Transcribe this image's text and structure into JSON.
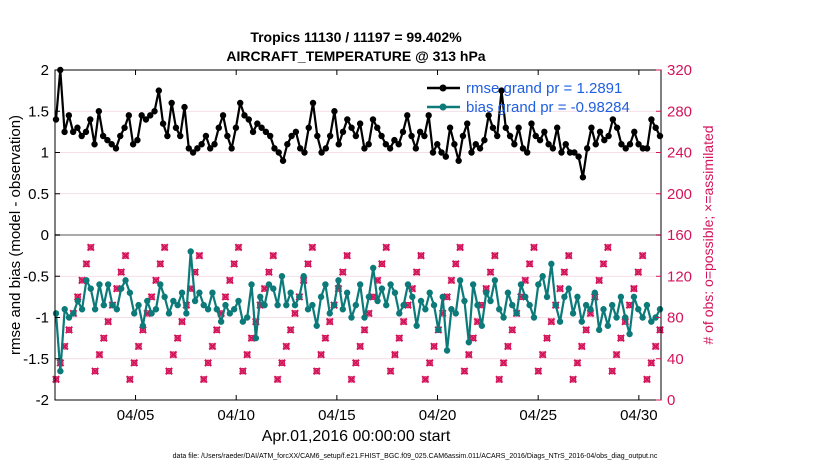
{
  "title_line1": "Tropics 11130 / 11197 = 99.402%",
  "title_line2": "AIRCRAFT_TEMPERATURE @ 313 hPa",
  "xlabel": "Apr.01,2016 00:00:00 start",
  "ylabel_left": "rmse and bias (model - observation)",
  "ylabel_right": "# of obs: o=possible; ×=assimilated",
  "footer": "data file: /Users/raeder/DAI/ATM_forcXX/CAM6_setup/f.e21.FHIST_BGC.f09_025.CAM6assim.011/ACARS_2016/Diags_NTrS_2016-04/obs_diag_output.nc",
  "legend": {
    "rmse_label": "rmse grand pr = 1.2891",
    "bias_label": "bias grand pr = -0.98284"
  },
  "colors": {
    "rmse": "#000000",
    "bias": "#0d7a7a",
    "obs": "#d4145a",
    "zero_line": "#aaaaaa",
    "legend_text": "#1f5fe0"
  },
  "chart_data": {
    "type": "line",
    "x_unit": "days since 2016-04-01 00:00",
    "x_range": [
      0,
      30.1
    ],
    "y_left_range": [
      -2,
      2
    ],
    "y_right_range": [
      0,
      320
    ],
    "x_ticks": [
      {
        "value": 4,
        "label": "04/05"
      },
      {
        "value": 9,
        "label": "04/10"
      },
      {
        "value": 14,
        "label": "04/15"
      },
      {
        "value": 19,
        "label": "04/20"
      },
      {
        "value": 24,
        "label": "04/25"
      },
      {
        "value": 29,
        "label": "04/30"
      }
    ],
    "y_left_ticks": [
      {
        "value": 2,
        "label": "2"
      },
      {
        "value": 1.5,
        "label": "1.5"
      },
      {
        "value": 1,
        "label": "1"
      },
      {
        "value": 0.5,
        "label": "0.5"
      },
      {
        "value": 0,
        "label": "0"
      },
      {
        "value": -0.5,
        "label": "-0.5"
      },
      {
        "value": -1,
        "label": "-1"
      },
      {
        "value": -1.5,
        "label": "-1.5"
      },
      {
        "value": -2,
        "label": "-2"
      }
    ],
    "y_right_ticks": [
      {
        "value": 320,
        "label": "320"
      },
      {
        "value": 280,
        "label": "280"
      },
      {
        "value": 240,
        "label": "240"
      },
      {
        "value": 200,
        "label": "200"
      },
      {
        "value": 160,
        "label": "160"
      },
      {
        "value": 120,
        "label": "120"
      },
      {
        "value": 80,
        "label": "80"
      },
      {
        "value": 40,
        "label": "40"
      },
      {
        "value": 0,
        "label": "0"
      }
    ],
    "rmse": [
      1.4,
      2.0,
      1.25,
      1.45,
      1.25,
      1.3,
      1.2,
      1.25,
      1.4,
      1.1,
      1.5,
      1.2,
      1.15,
      1.1,
      1.05,
      1.2,
      1.3,
      1.45,
      1.1,
      1.15,
      1.45,
      1.4,
      1.45,
      1.5,
      1.75,
      1.35,
      1.2,
      1.6,
      1.3,
      1.2,
      1.55,
      1.05,
      1.0,
      1.05,
      1.1,
      1.2,
      1.05,
      1.1,
      1.3,
      1.45,
      1.2,
      1.05,
      1.3,
      1.6,
      1.45,
      1.4,
      1.25,
      1.35,
      1.3,
      1.25,
      1.2,
      1.05,
      1.0,
      0.9,
      1.1,
      1.2,
      1.25,
      1.05,
      1.0,
      1.3,
      1.6,
      1.2,
      1.0,
      1.05,
      1.2,
      1.5,
      1.1,
      1.25,
      1.4,
      1.3,
      1.2,
      1.35,
      1.05,
      1.1,
      1.4,
      1.3,
      1.2,
      1.1,
      1.05,
      1.15,
      1.1,
      1.25,
      1.45,
      1.2,
      1.05,
      1.25,
      1.2,
      1.45,
      1.0,
      1.1,
      1.0,
      0.95,
      1.3,
      1.1,
      0.9,
      1.2,
      1.35,
      1.0,
      1.1,
      1.05,
      1.15,
      1.45,
      1.3,
      1.2,
      1.75,
      1.3,
      1.2,
      1.1,
      1.3,
      1.05,
      1.0,
      1.35,
      1.2,
      1.15,
      1.25,
      1.1,
      1.05,
      1.3,
      1.0,
      1.1,
      1.0,
      1.0,
      0.95,
      0.7,
      1.05,
      1.3,
      1.1,
      1.25,
      1.15,
      1.2,
      1.4,
      1.3,
      1.1,
      1.05,
      1.1,
      1.25,
      1.1,
      1.05,
      1.05,
      1.4,
      1.3,
      1.2
    ],
    "bias": [
      -0.95,
      -1.65,
      -0.9,
      -1.0,
      -0.95,
      -0.8,
      -0.9,
      -0.55,
      -0.65,
      -0.9,
      -0.6,
      -0.85,
      -0.6,
      -0.85,
      -0.9,
      -0.65,
      -0.55,
      -0.7,
      -0.95,
      -0.85,
      -1.1,
      -0.8,
      -0.95,
      -0.9,
      -0.6,
      -0.75,
      -0.95,
      -0.8,
      -0.85,
      -0.7,
      -0.95,
      -0.2,
      -0.8,
      -0.7,
      -0.85,
      -0.9,
      -0.7,
      -0.9,
      -1.05,
      -0.85,
      -0.95,
      -0.9,
      -0.8,
      -1.05,
      -1.0,
      -0.6,
      -1.25,
      -0.75,
      -0.85,
      -0.6,
      -0.65,
      -0.85,
      -0.5,
      -0.85,
      -0.7,
      -0.85,
      -0.75,
      -0.5,
      -0.9,
      -0.85,
      -1.1,
      -0.75,
      -0.6,
      -0.95,
      -0.85,
      -0.55,
      -0.9,
      -0.7,
      -1.0,
      -0.85,
      -0.6,
      -1.0,
      -0.75,
      -0.4,
      -0.8,
      -0.65,
      -0.85,
      -0.6,
      -0.7,
      -0.95,
      -0.85,
      -0.6,
      -0.75,
      -1.1,
      -0.8,
      -0.9,
      -0.7,
      -0.85,
      -1.15,
      -0.75,
      -1.4,
      -0.9,
      -0.95,
      -0.55,
      -0.8,
      -1.3,
      -0.6,
      -0.85,
      -1.1,
      -0.7,
      -0.8,
      -0.55,
      -0.9,
      -1.0,
      -0.7,
      -0.85,
      -0.95,
      -0.6,
      -0.75,
      -0.85,
      -1.0,
      -0.6,
      -0.5,
      -0.75,
      -0.35,
      -0.85,
      -1.05,
      -0.75,
      -0.65,
      -0.95,
      -0.75,
      -1.05,
      -0.85,
      -0.9,
      -0.7,
      -1.15,
      -0.9,
      -1.1,
      -0.85,
      -1.0,
      -0.75,
      -1.0,
      -1.2,
      -0.75,
      -0.9,
      -1.0,
      -0.85,
      -1.05,
      -1.0,
      -0.9
    ]
  }
}
